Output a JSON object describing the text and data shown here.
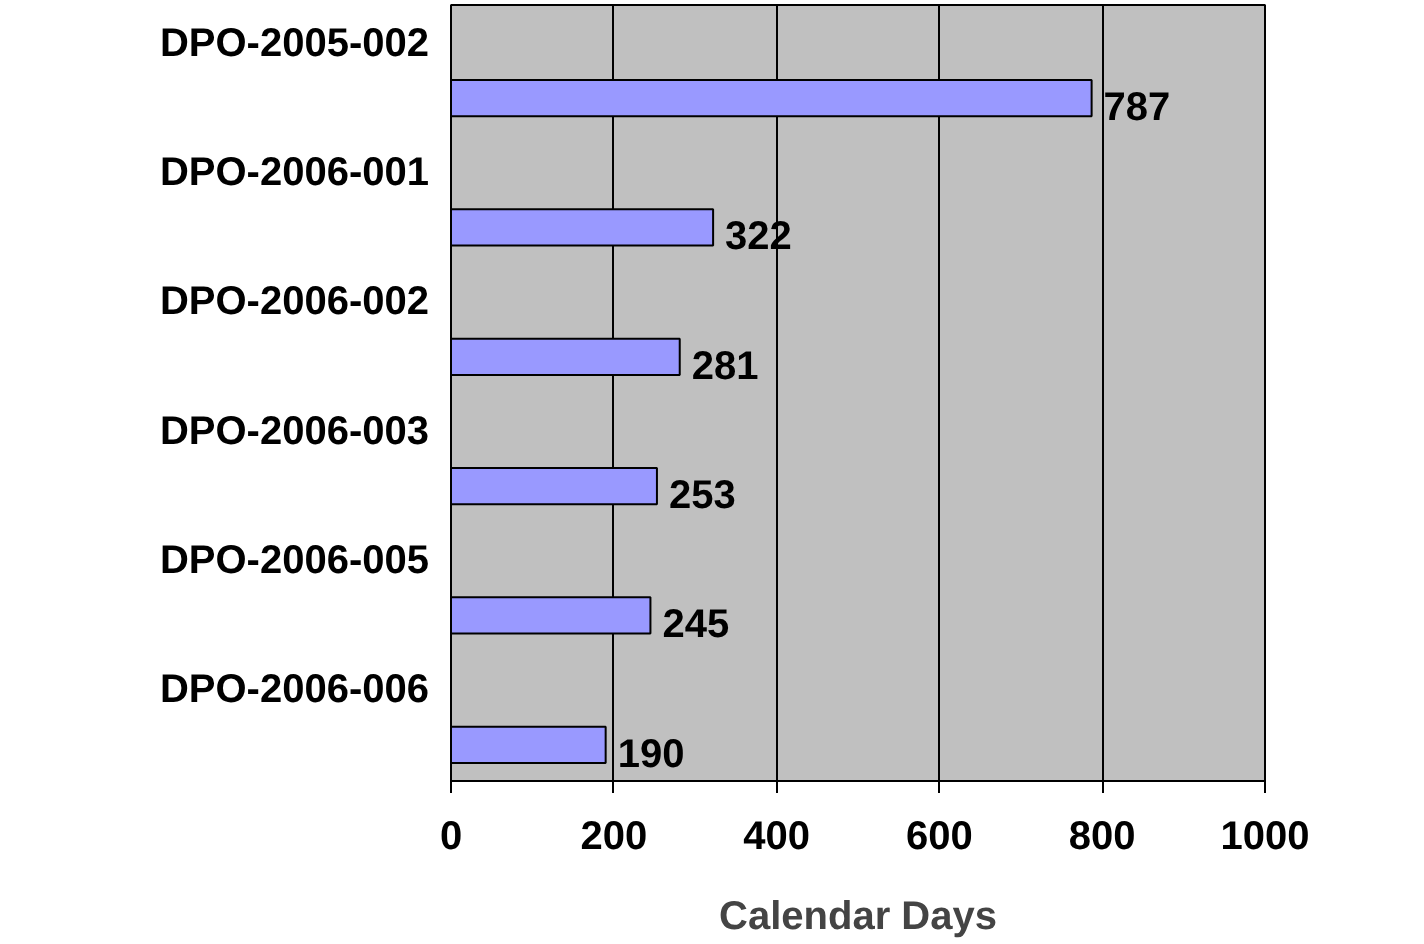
{
  "chart_data": {
    "type": "bar",
    "orientation": "horizontal",
    "xlabel": "Calendar Days",
    "categories": [
      "DPO-2005-002",
      "DPO-2006-001",
      "DPO-2006-002",
      "DPO-2006-003",
      "DPO-2006-005",
      "DPO-2006-006"
    ],
    "values": [
      787,
      322,
      281,
      253,
      245,
      190
    ],
    "color": "#9999ff",
    "xlim": [
      0,
      1000
    ],
    "xticks": [
      0,
      200,
      400,
      600,
      800,
      1000
    ],
    "grid": "x",
    "data_labels": true
  }
}
